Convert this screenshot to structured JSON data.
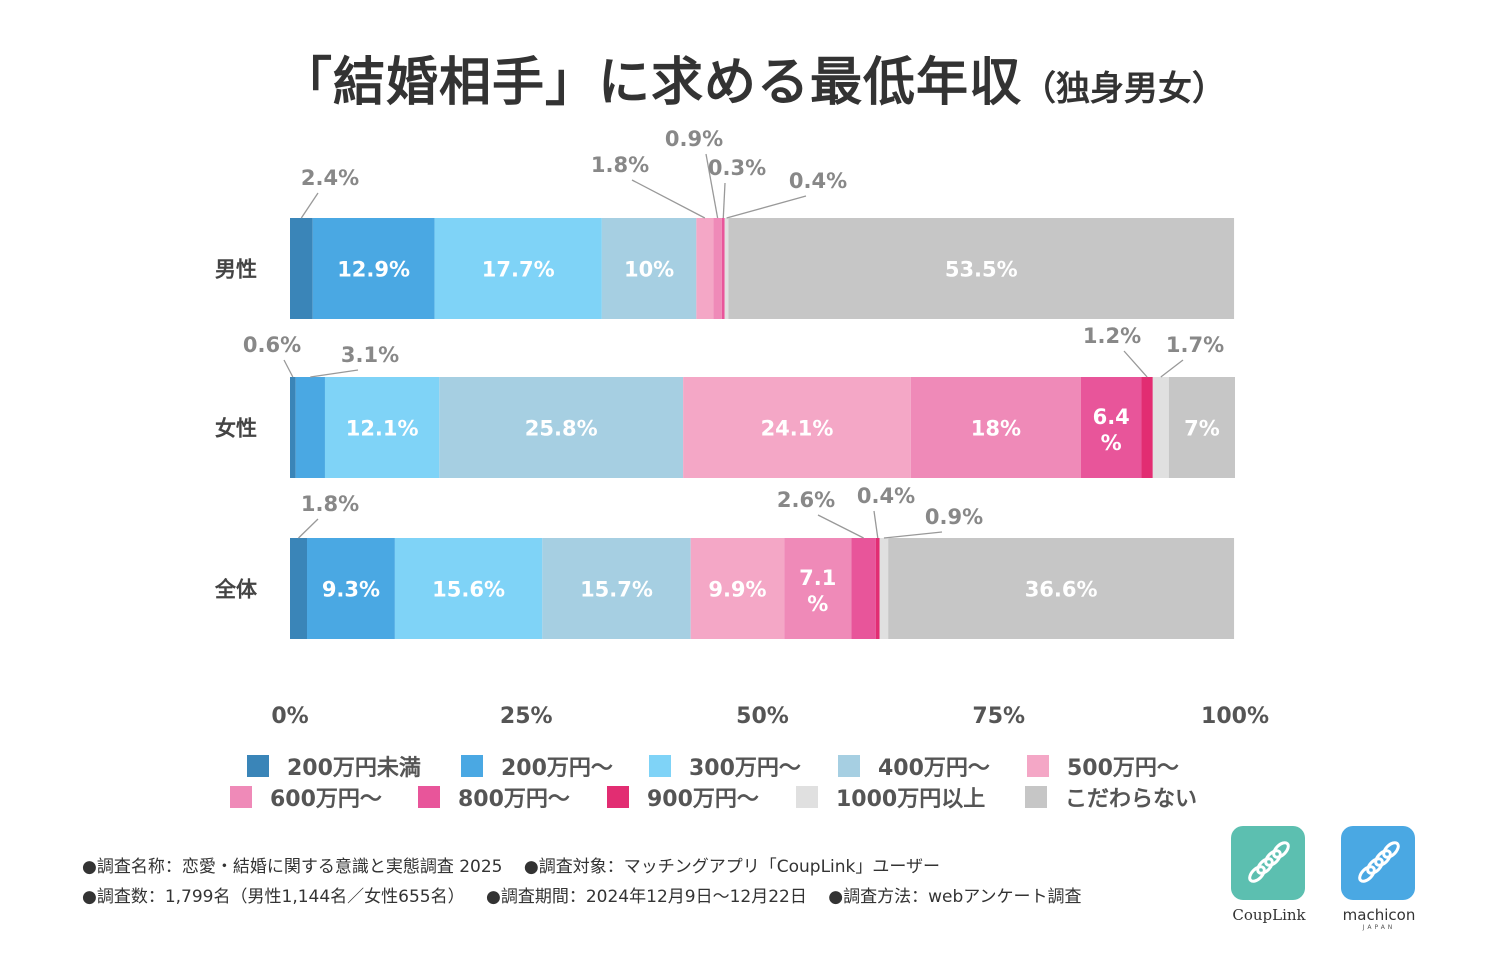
{
  "title": {
    "main": "「結婚相手」に求める最低年収",
    "sub": "（独身男女）"
  },
  "chart_data": {
    "type": "bar",
    "orientation": "horizontal-stacked-100",
    "categories": [
      "男性",
      "女性",
      "全体"
    ],
    "x_ticks": [
      "0%",
      "25%",
      "50%",
      "75%",
      "100%"
    ],
    "xlim": [
      0,
      100
    ],
    "legend_position": "bottom",
    "series": [
      {
        "name": "200万円未満",
        "color": "#3a85b8",
        "values": [
          2.4,
          0.6,
          1.8
        ],
        "labels": [
          "2.4%",
          "0.6%",
          "1.8%"
        ]
      },
      {
        "name": "200万円〜",
        "color": "#4aa8e3",
        "values": [
          12.9,
          3.1,
          9.3
        ],
        "labels": [
          "12.9%",
          "3.1%",
          "9.3%"
        ]
      },
      {
        "name": "300万円〜",
        "color": "#7fd3f7",
        "values": [
          17.7,
          12.1,
          15.6
        ],
        "labels": [
          "17.7%",
          "12.1%",
          "15.6%"
        ]
      },
      {
        "name": "400万円〜",
        "color": "#a6cfe2",
        "values": [
          10,
          25.8,
          15.7
        ],
        "labels": [
          "10%",
          "25.8%",
          "15.7%"
        ]
      },
      {
        "name": "500万円〜",
        "color": "#f4a7c6",
        "values": [
          1.8,
          24.1,
          9.9
        ],
        "labels": [
          "1.8%",
          "24.1%",
          "9.9%"
        ]
      },
      {
        "name": "600万円〜",
        "color": "#ef8ab8",
        "values": [
          0.9,
          18,
          7.1
        ],
        "labels": [
          "0.9%",
          "18%",
          "7.1\n%"
        ]
      },
      {
        "name": "800万円〜",
        "color": "#e8559a",
        "values": [
          0.3,
          6.4,
          2.6
        ],
        "labels": [
          "0.3%",
          "6.4\n%",
          "2.6%"
        ]
      },
      {
        "name": "900万円〜",
        "color": "#e22d72",
        "values": [
          0,
          1.2,
          0.4
        ],
        "labels": [
          "",
          "1.2%",
          "0.4%"
        ]
      },
      {
        "name": "1000万円以上",
        "color": "#e0e0e0",
        "values": [
          0.4,
          1.7,
          0.9
        ],
        "labels": [
          "0.4%",
          "1.7%",
          "0.9%"
        ]
      },
      {
        "name": "こだわらない",
        "color": "#c6c6c6",
        "values": [
          53.5,
          7,
          36.6
        ],
        "labels": [
          "53.5%",
          "7%",
          "36.6%"
        ]
      }
    ]
  },
  "footnotes": {
    "line1": [
      "●調査名称：恋愛・結婚に関する意識と実態調査 2025",
      "●調査対象：マッチングアプリ「CoupLink」ユーザー"
    ],
    "line2": [
      "●調査数：1,799名（男性1,144名／女性655名）",
      "●調査期間：2024年12月9日〜12月22日",
      "●調査方法：webアンケート調査"
    ]
  },
  "logos": {
    "couplink": {
      "text": "CoupLink",
      "color": "#5cbfb0",
      "icon": "dna-icon"
    },
    "machicon": {
      "text": "machicon",
      "sub": "JAPAN",
      "color": "#4aa8e3",
      "icon": "dna-icon"
    }
  }
}
